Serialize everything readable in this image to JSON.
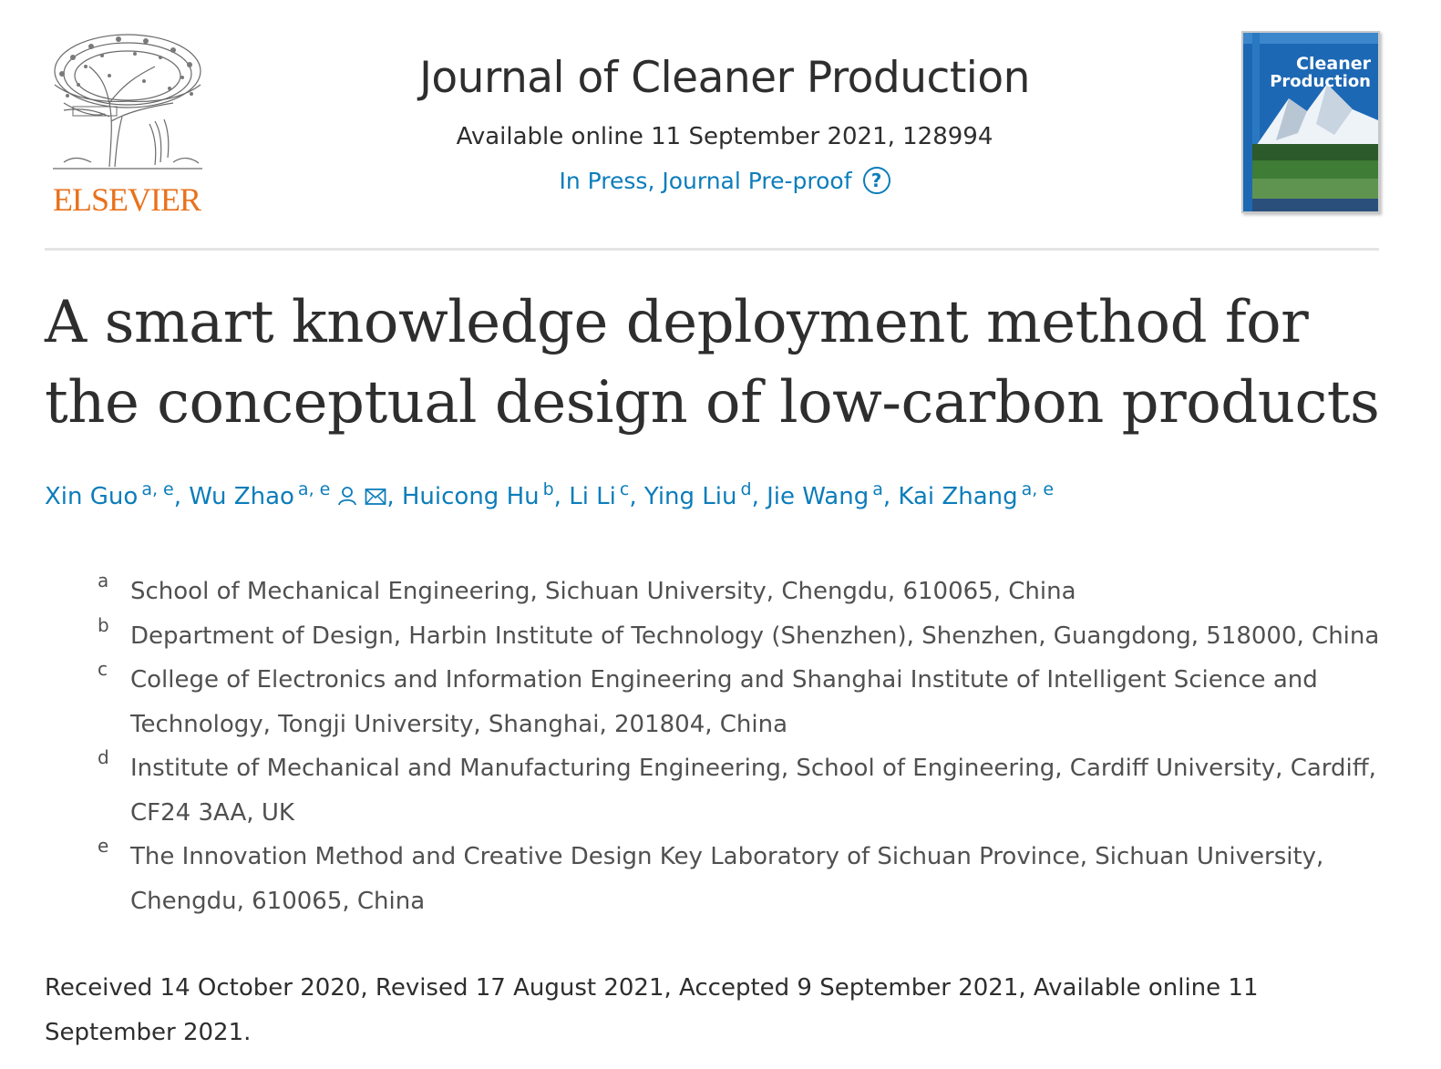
{
  "publisher": {
    "name": "ELSEVIER",
    "logo_icon": "elsevier-tree-logo",
    "brand_color": "#e9711c"
  },
  "journal": {
    "title": "Journal of Cleaner Production",
    "issue": "Available online 11 September 2021, 128994",
    "status": "In Press, Journal Pre-proof",
    "help_icon": "question-circle-icon",
    "cover_title_line1": "Cleaner",
    "cover_title_line2": "Production"
  },
  "article": {
    "title": "A smart knowledge deployment method for the conceptual design of low-carbon products"
  },
  "authors": [
    {
      "name": "Xin Guo",
      "sup": "a, e"
    },
    {
      "name": "Wu Zhao",
      "sup": "a, e"
    },
    {
      "name": "Huicong Hu",
      "sup": "b"
    },
    {
      "name": "Li Li",
      "sup": "c"
    },
    {
      "name": "Ying Liu",
      "sup": "d"
    },
    {
      "name": "Jie Wang",
      "sup": "a"
    },
    {
      "name": "Kai Zhang",
      "sup": "a, e"
    }
  ],
  "author_separator": ",",
  "author_icons": [
    "person-icon",
    "envelope-icon"
  ],
  "affiliations": [
    {
      "label": "a",
      "text": "School of Mechanical Engineering, Sichuan University, Chengdu, 610065, China"
    },
    {
      "label": "b",
      "text": "Department of Design, Harbin Institute of Technology (Shenzhen), Shenzhen, Guangdong, 518000, China"
    },
    {
      "label": "c",
      "text": "College of Electronics and Information Engineering and Shanghai Institute of Intelligent Science and Technology, Tongji University, Shanghai, 201804, China"
    },
    {
      "label": "d",
      "text": "Institute of Mechanical and Manufacturing Engineering, School of Engineering, Cardiff University, Cardiff, CF24 3AA, UK"
    },
    {
      "label": "e",
      "text": "The Innovation Method and Creative Design Key Laboratory of Sichuan Province, Sichuan University, Chengdu, 610065, China"
    }
  ],
  "dates": "Received 14 October 2020, Revised 17 August 2021, Accepted 9 September 2021, Available online 11 September 2021.",
  "colors": {
    "link": "#0c7dbb",
    "text": "#2e2e2e",
    "muted": "#505050"
  }
}
